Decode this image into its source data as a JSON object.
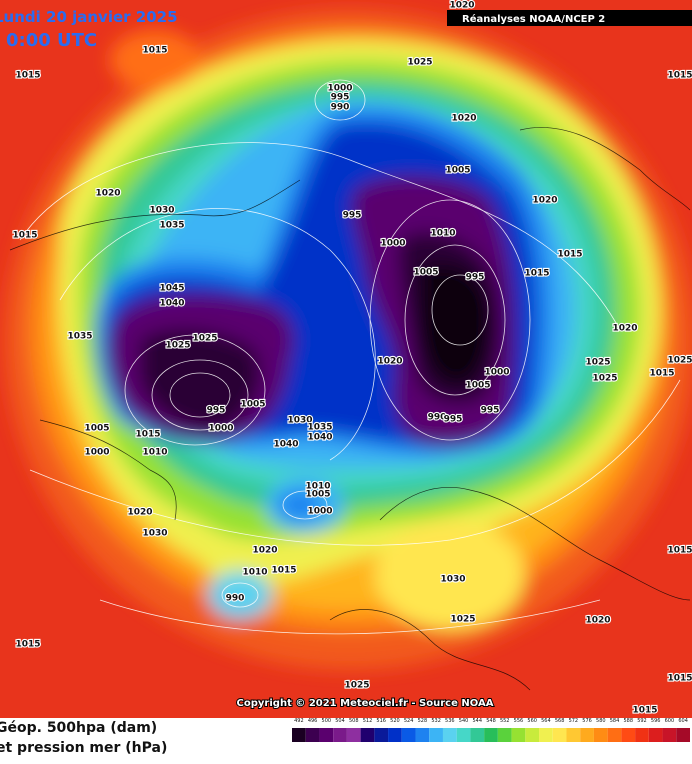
{
  "header": {
    "date": "Lundi 20 janvier 2025",
    "time": "0:00 UTC",
    "source": "Réanalyses NOAA/NCEP 2"
  },
  "copyright": "Copyright © 2021 Meteociel.fr - Source NOAA",
  "legend": {
    "title_line1": "Géop. 500hpa (dam)",
    "title_line2": "et pression mer (hPa)",
    "values": [
      492,
      496,
      500,
      504,
      508,
      512,
      516,
      520,
      524,
      528,
      532,
      536,
      540,
      544,
      548,
      552,
      556,
      560,
      564,
      568,
      572,
      576,
      580,
      584,
      588,
      592,
      596,
      600,
      604
    ],
    "colors": [
      "#1a0022",
      "#3c0050",
      "#5a006e",
      "#7a1a8a",
      "#8e2fa0",
      "#20006e",
      "#0a1a9a",
      "#0030c8",
      "#0a5ae6",
      "#1e82f0",
      "#3cb4f5",
      "#5ad2f0",
      "#46d7c8",
      "#32c896",
      "#28be5a",
      "#5ad23c",
      "#96e132",
      "#c8eb3c",
      "#f0f050",
      "#ffe650",
      "#ffc832",
      "#ffaa1e",
      "#ff8c14",
      "#ff6e14",
      "#ff4b14",
      "#f03214",
      "#dc1e1e",
      "#c81428",
      "#a50a28"
    ]
  },
  "isobar_labels": [
    "1020",
    "1015",
    "1015",
    "1025",
    "1000",
    "995",
    "990",
    "1020",
    "1015",
    "1020",
    "1030",
    "1035",
    "1015",
    "1005",
    "1020",
    "995",
    "1010",
    "1000",
    "1005",
    "995",
    "1015",
    "1015",
    "1045",
    "1040",
    "1035",
    "1025",
    "1025",
    "1020",
    "1020",
    "1025",
    "1025",
    "1025",
    "1015",
    "1000",
    "1005",
    "995",
    "1005",
    "1000",
    "1030",
    "1035",
    "1040",
    "1040",
    "990",
    "995",
    "995",
    "1005",
    "1015",
    "1010",
    "1000",
    "1010",
    "1005",
    "1000",
    "1020",
    "1030",
    "1020",
    "1010",
    "1015",
    "990",
    "1030",
    "1025",
    "1020",
    "1015",
    "1015",
    "1015",
    "1015",
    "1025"
  ]
}
